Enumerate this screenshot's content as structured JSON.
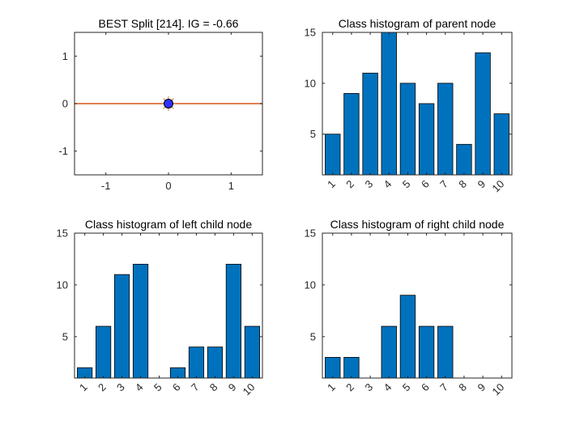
{
  "colors": {
    "bar": "#0072BD",
    "bar_edge": "#000000",
    "split_line": "#D95319",
    "point_fill": "#3030FF",
    "axis": "#262626"
  },
  "chart_data": [
    {
      "type": "line",
      "title": "BEST Split [214]. IG = -0.66",
      "xlabel": "",
      "ylabel": "",
      "xlim": [
        -1.5,
        1.5
      ],
      "ylim": [
        -1.5,
        1.5
      ],
      "xticks": [
        -1,
        0,
        1
      ],
      "yticks": [
        -1,
        0,
        1
      ],
      "xtick_labels": [
        "-1",
        "0",
        "1"
      ],
      "ytick_labels": [
        "-1",
        "0",
        "1"
      ],
      "grid": false,
      "series": [
        {
          "kind": "line",
          "x": [
            -1.5,
            1.5
          ],
          "y": [
            0,
            0
          ]
        },
        {
          "kind": "point",
          "x": [
            0
          ],
          "y": [
            0
          ]
        }
      ]
    },
    {
      "type": "bar",
      "title": "Class histogram of parent node",
      "categories": [
        "1",
        "2",
        "3",
        "4",
        "5",
        "6",
        "7",
        "8",
        "9",
        "10"
      ],
      "values": [
        5,
        9,
        11,
        15,
        10,
        8,
        10,
        4,
        13,
        7
      ],
      "ylim": [
        1,
        15
      ],
      "yticks": [
        5,
        10,
        15
      ],
      "ytick_labels": [
        "5",
        "10",
        "15"
      ],
      "xlabel": "",
      "ylabel": "",
      "grid": false
    },
    {
      "type": "bar",
      "title": "Class histogram of left child node",
      "categories": [
        "1",
        "2",
        "3",
        "4",
        "5",
        "6",
        "7",
        "8",
        "9",
        "10"
      ],
      "values": [
        2,
        6,
        11,
        12,
        0,
        2,
        4,
        4,
        12,
        6
      ],
      "ylim": [
        1,
        15
      ],
      "yticks": [
        5,
        10,
        15
      ],
      "ytick_labels": [
        "5",
        "10",
        "15"
      ],
      "xlabel": "",
      "ylabel": "",
      "grid": false
    },
    {
      "type": "bar",
      "title": "Class histogram of right child node",
      "categories": [
        "1",
        "2",
        "3",
        "4",
        "5",
        "6",
        "7",
        "8",
        "9",
        "10"
      ],
      "values": [
        3,
        3,
        0,
        6,
        9,
        6,
        6,
        0,
        0,
        0
      ],
      "ylim": [
        1,
        15
      ],
      "yticks": [
        5,
        10,
        15
      ],
      "ytick_labels": [
        "5",
        "10",
        "15"
      ],
      "xlabel": "",
      "ylabel": "",
      "grid": false
    }
  ]
}
